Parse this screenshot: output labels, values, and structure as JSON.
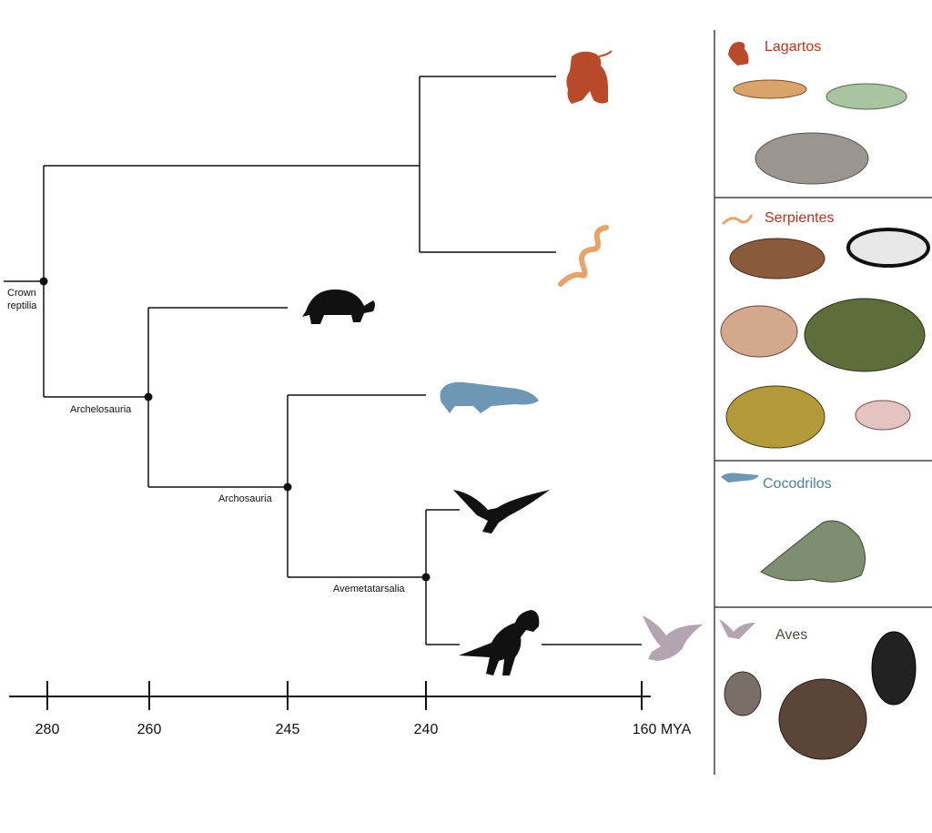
{
  "tree": {
    "nodes": {
      "crown": "Crown\nreptilia",
      "archelosauria": "Archelosauria",
      "archosauria": "Archosauria",
      "avemetatarsalia": "Avemetatarsalia"
    }
  },
  "timeline": {
    "ticks": [
      "280",
      "260",
      "245",
      "240",
      "160 MYA"
    ]
  },
  "panels": [
    {
      "title": "Lagartos",
      "color": "#b4351f"
    },
    {
      "title": "Serpientes",
      "color": "#b4351f"
    },
    {
      "title": "Cocodrilos",
      "color": "#4d7fa1"
    },
    {
      "title": "Aves",
      "color": "#4a4f3a"
    }
  ],
  "colors": {
    "lizard": "#b84a2a",
    "snake": "#e7a36a",
    "croc": "#6e97b5",
    "bird": "#b4a4b1",
    "silhouette": "#111111"
  }
}
